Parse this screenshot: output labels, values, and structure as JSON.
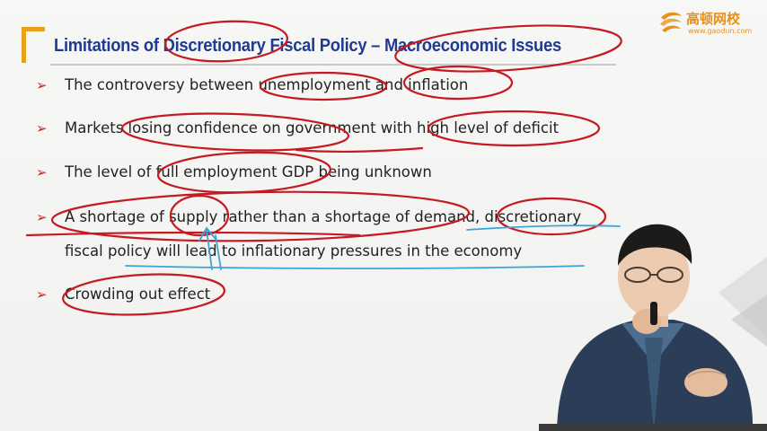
{
  "slide": {
    "title": "Limitations of Discretionary Fiscal Policy – Macroeconomic Issues",
    "bullet_marker": "➢",
    "bullets": [
      {
        "text": "The controversy between unemployment and inflation"
      },
      {
        "text": "Markets losing confidence on government with high level of deficit"
      },
      {
        "text": "The level of full employment GDP being unknown"
      },
      {
        "text": "A shortage of supply rather than a shortage of demand, discretionary",
        "text_line2": "fiscal policy will lead to inflationary pressures in the economy"
      },
      {
        "text": "Crowding out effect"
      }
    ]
  },
  "logo": {
    "name": "高顿网校",
    "url": "www.gaodun.com"
  },
  "colors": {
    "title": "#1f3a93",
    "bracket": "#e8a21a",
    "bullet_arrow": "#c8281e",
    "ink_red": "#c41a22",
    "ink_blue": "#3aa6d8",
    "logo": "#e8901a"
  },
  "icons": {
    "logo_mark": "gaodun-logo-icon",
    "bullet": "arrow-bullet-icon"
  }
}
